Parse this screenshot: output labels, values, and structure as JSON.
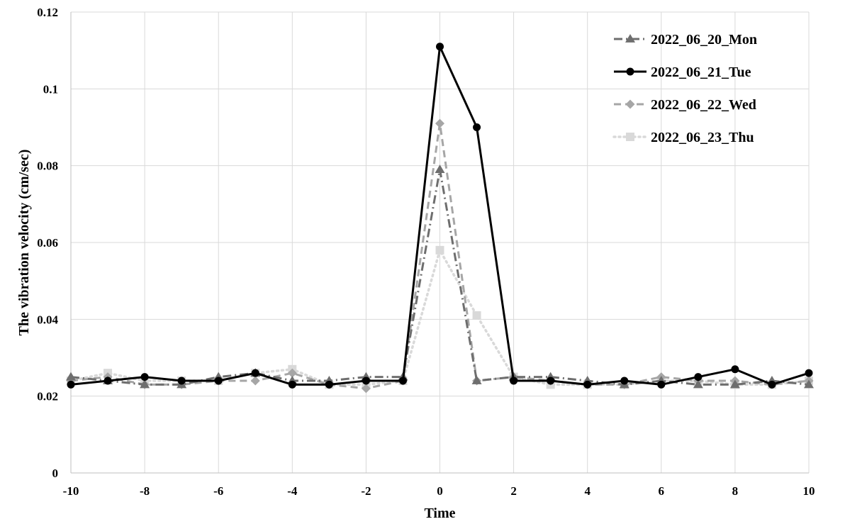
{
  "chart_data": {
    "type": "line",
    "xlabel": "Time",
    "ylabel": "The vibration velocity (cm/sec)",
    "xlim": [
      -10,
      10
    ],
    "ylim": [
      0,
      0.12
    ],
    "x_ticks": [
      -10,
      -8,
      -6,
      -4,
      -2,
      0,
      2,
      4,
      6,
      8,
      10
    ],
    "y_ticks": [
      0,
      0.02,
      0.04,
      0.06,
      0.08,
      0.1,
      0.12
    ],
    "x_tick_labels": [
      "-10",
      "-8",
      "-6",
      "-4",
      "-2",
      "0",
      "2",
      "4",
      "6",
      "8",
      "10"
    ],
    "y_tick_labels": [
      "0",
      "0.02",
      "0.04",
      "0.06",
      "0.08",
      "0.1",
      "0.12"
    ],
    "grid": true,
    "legend_position": "top-right",
    "x": [
      -10,
      -9,
      -8,
      -7,
      -6,
      -5,
      -4,
      -3,
      -2,
      -1,
      0,
      1,
      2,
      3,
      4,
      5,
      6,
      7,
      8,
      9,
      10
    ],
    "series": [
      {
        "name": "2022_06_20_Mon",
        "color": "#6e6e6e",
        "marker": "triangle",
        "dash": "dash-dot",
        "values": [
          0.025,
          0.024,
          0.023,
          0.023,
          0.025,
          0.026,
          0.024,
          0.024,
          0.025,
          0.025,
          0.079,
          0.024,
          0.025,
          0.025,
          0.024,
          0.023,
          0.024,
          0.023,
          0.023,
          0.024,
          0.023
        ]
      },
      {
        "name": "2022_06_21_Tue",
        "color": "#000000",
        "marker": "circle",
        "dash": "solid",
        "values": [
          0.023,
          0.024,
          0.025,
          0.024,
          0.024,
          0.026,
          0.023,
          0.023,
          0.024,
          0.024,
          0.111,
          0.09,
          0.024,
          0.024,
          0.023,
          0.024,
          0.023,
          0.025,
          0.027,
          0.023,
          0.026
        ]
      },
      {
        "name": "2022_06_22_Wed",
        "color": "#a6a6a6",
        "marker": "diamond",
        "dash": "dash",
        "values": [
          0.024,
          0.025,
          0.023,
          0.023,
          0.024,
          0.024,
          0.026,
          0.023,
          0.022,
          0.024,
          0.091,
          0.024,
          0.025,
          0.024,
          0.023,
          0.023,
          0.025,
          0.024,
          0.024,
          0.023,
          0.024
        ]
      },
      {
        "name": "2022_06_23_Thu",
        "color": "#d9d9d9",
        "marker": "square",
        "dash": "dot",
        "values": [
          0.024,
          0.026,
          0.024,
          0.024,
          0.024,
          0.026,
          0.027,
          0.023,
          0.023,
          0.024,
          0.058,
          0.041,
          0.025,
          0.023,
          0.023,
          0.023,
          0.024,
          0.024,
          0.023,
          0.023,
          0.024
        ]
      }
    ]
  }
}
